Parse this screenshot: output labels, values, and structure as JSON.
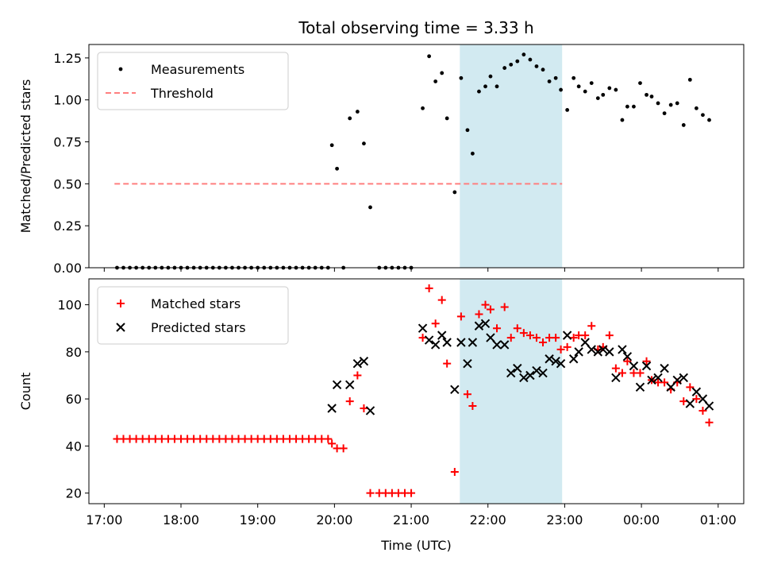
{
  "chart_data": [
    {
      "type": "scatter",
      "title": "Total observing time = 3.33 h",
      "xlabel": "",
      "ylabel": "Matched/Predicted stars",
      "ylim": [
        0,
        1.33
      ],
      "yticks": [
        "0.00",
        "0.25",
        "0.50",
        "0.75",
        "1.00",
        "1.25"
      ],
      "shaded_span": [
        "21:38",
        "22:58"
      ],
      "legend_position": "top-left",
      "threshold": {
        "name": "Threshold",
        "value": 0.5,
        "x_start": "17:08",
        "x_end": "22:58",
        "color": "#ff7f7f"
      },
      "series": [
        {
          "name": "Measurements",
          "color": "#000000",
          "points": [
            [
              "17:10",
              0
            ],
            [
              "17:15",
              0
            ],
            [
              "17:20",
              0
            ],
            [
              "17:25",
              0
            ],
            [
              "17:30",
              0
            ],
            [
              "17:35",
              0
            ],
            [
              "17:40",
              0
            ],
            [
              "17:45",
              0
            ],
            [
              "17:50",
              0
            ],
            [
              "17:55",
              0
            ],
            [
              "18:00",
              0
            ],
            [
              "18:05",
              0
            ],
            [
              "18:10",
              0
            ],
            [
              "18:15",
              0
            ],
            [
              "18:20",
              0
            ],
            [
              "18:25",
              0
            ],
            [
              "18:30",
              0
            ],
            [
              "18:35",
              0
            ],
            [
              "18:40",
              0
            ],
            [
              "18:45",
              0
            ],
            [
              "18:50",
              0
            ],
            [
              "18:55",
              0
            ],
            [
              "19:00",
              0
            ],
            [
              "19:05",
              0
            ],
            [
              "19:10",
              0
            ],
            [
              "19:15",
              0
            ],
            [
              "19:20",
              0
            ],
            [
              "19:25",
              0
            ],
            [
              "19:30",
              0
            ],
            [
              "19:35",
              0
            ],
            [
              "19:40",
              0
            ],
            [
              "19:45",
              0
            ],
            [
              "19:50",
              0
            ],
            [
              "19:55",
              0
            ],
            [
              "19:58",
              0.73
            ],
            [
              "20:02",
              0.59
            ],
            [
              "20:07",
              0
            ],
            [
              "20:12",
              0.89
            ],
            [
              "20:18",
              0.93
            ],
            [
              "20:23",
              0.74
            ],
            [
              "20:28",
              0.36
            ],
            [
              "20:35",
              0
            ],
            [
              "20:40",
              0
            ],
            [
              "20:45",
              0
            ],
            [
              "20:50",
              0
            ],
            [
              "20:55",
              0
            ],
            [
              "21:00",
              0
            ],
            [
              "21:09",
              0.95
            ],
            [
              "21:14",
              1.26
            ],
            [
              "21:19",
              1.11
            ],
            [
              "21:24",
              1.16
            ],
            [
              "21:28",
              0.89
            ],
            [
              "21:34",
              0.45
            ],
            [
              "21:39",
              1.13
            ],
            [
              "21:44",
              0.82
            ],
            [
              "21:48",
              0.68
            ],
            [
              "21:53",
              1.05
            ],
            [
              "21:58",
              1.08
            ],
            [
              "22:02",
              1.14
            ],
            [
              "22:07",
              1.08
            ],
            [
              "22:13",
              1.19
            ],
            [
              "22:18",
              1.21
            ],
            [
              "22:23",
              1.23
            ],
            [
              "22:28",
              1.27
            ],
            [
              "22:33",
              1.24
            ],
            [
              "22:38",
              1.2
            ],
            [
              "22:43",
              1.18
            ],
            [
              "22:48",
              1.11
            ],
            [
              "22:53",
              1.13
            ],
            [
              "22:57",
              1.06
            ],
            [
              "23:02",
              0.94
            ],
            [
              "23:07",
              1.13
            ],
            [
              "23:11",
              1.08
            ],
            [
              "23:16",
              1.05
            ],
            [
              "23:21",
              1.1
            ],
            [
              "23:26",
              1.01
            ],
            [
              "23:30",
              1.03
            ],
            [
              "23:35",
              1.07
            ],
            [
              "23:40",
              1.06
            ],
            [
              "23:45",
              0.88
            ],
            [
              "23:49",
              0.96
            ],
            [
              "23:54",
              0.96
            ],
            [
              "23:59",
              1.1
            ],
            [
              "00:04",
              1.03
            ],
            [
              "00:08",
              1.02
            ],
            [
              "00:13",
              0.98
            ],
            [
              "00:18",
              0.92
            ],
            [
              "00:23",
              0.97
            ],
            [
              "00:28",
              0.98
            ],
            [
              "00:33",
              0.85
            ],
            [
              "00:38",
              1.12
            ],
            [
              "00:43",
              0.95
            ],
            [
              "00:48",
              0.91
            ],
            [
              "00:53",
              0.88
            ]
          ]
        }
      ]
    },
    {
      "type": "scatter",
      "title": "",
      "xlabel": "Time (UTC)",
      "ylabel": "Count",
      "ylim": [
        15.5,
        111
      ],
      "yticks": [
        "20",
        "40",
        "60",
        "80",
        "100"
      ],
      "xticks": [
        "17:00",
        "18:00",
        "19:00",
        "20:00",
        "21:00",
        "22:00",
        "23:00",
        "00:00",
        "01:00"
      ],
      "shaded_span": [
        "21:38",
        "22:58"
      ],
      "legend_position": "top-left",
      "series": [
        {
          "name": "Matched stars",
          "marker": "plus",
          "color": "#ff0000",
          "points": [
            [
              "17:10",
              43
            ],
            [
              "17:15",
              43
            ],
            [
              "17:20",
              43
            ],
            [
              "17:25",
              43
            ],
            [
              "17:30",
              43
            ],
            [
              "17:35",
              43
            ],
            [
              "17:40",
              43
            ],
            [
              "17:45",
              43
            ],
            [
              "17:50",
              43
            ],
            [
              "17:55",
              43
            ],
            [
              "18:00",
              43
            ],
            [
              "18:05",
              43
            ],
            [
              "18:10",
              43
            ],
            [
              "18:15",
              43
            ],
            [
              "18:20",
              43
            ],
            [
              "18:25",
              43
            ],
            [
              "18:30",
              43
            ],
            [
              "18:35",
              43
            ],
            [
              "18:40",
              43
            ],
            [
              "18:45",
              43
            ],
            [
              "18:50",
              43
            ],
            [
              "18:55",
              43
            ],
            [
              "19:00",
              43
            ],
            [
              "19:05",
              43
            ],
            [
              "19:10",
              43
            ],
            [
              "19:15",
              43
            ],
            [
              "19:20",
              43
            ],
            [
              "19:25",
              43
            ],
            [
              "19:30",
              43
            ],
            [
              "19:35",
              43
            ],
            [
              "19:40",
              43
            ],
            [
              "19:45",
              43
            ],
            [
              "19:50",
              43
            ],
            [
              "19:55",
              43
            ],
            [
              "19:58",
              41
            ],
            [
              "20:02",
              39
            ],
            [
              "20:07",
              39
            ],
            [
              "20:12",
              59
            ],
            [
              "20:18",
              70
            ],
            [
              "20:23",
              56
            ],
            [
              "20:28",
              20
            ],
            [
              "20:35",
              20
            ],
            [
              "20:40",
              20
            ],
            [
              "20:45",
              20
            ],
            [
              "20:50",
              20
            ],
            [
              "20:55",
              20
            ],
            [
              "21:00",
              20
            ],
            [
              "21:09",
              86
            ],
            [
              "21:14",
              107
            ],
            [
              "21:19",
              92
            ],
            [
              "21:24",
              102
            ],
            [
              "21:28",
              75
            ],
            [
              "21:34",
              29
            ],
            [
              "21:39",
              95
            ],
            [
              "21:44",
              62
            ],
            [
              "21:48",
              57
            ],
            [
              "21:53",
              96
            ],
            [
              "21:58",
              100
            ],
            [
              "22:02",
              98
            ],
            [
              "22:07",
              90
            ],
            [
              "22:13",
              99
            ],
            [
              "22:18",
              86
            ],
            [
              "22:23",
              90
            ],
            [
              "22:28",
              88
            ],
            [
              "22:33",
              87
            ],
            [
              "22:38",
              86
            ],
            [
              "22:43",
              84
            ],
            [
              "22:48",
              86
            ],
            [
              "22:53",
              86
            ],
            [
              "22:57",
              81
            ],
            [
              "23:02",
              82
            ],
            [
              "23:07",
              86
            ],
            [
              "23:11",
              87
            ],
            [
              "23:16",
              87
            ],
            [
              "23:21",
              91
            ],
            [
              "23:26",
              81
            ],
            [
              "23:30",
              82
            ],
            [
              "23:35",
              87
            ],
            [
              "23:40",
              73
            ],
            [
              "23:45",
              71
            ],
            [
              "23:49",
              76
            ],
            [
              "23:54",
              71
            ],
            [
              "23:59",
              71
            ],
            [
              "00:04",
              76
            ],
            [
              "00:08",
              68
            ],
            [
              "00:13",
              67
            ],
            [
              "00:18",
              67
            ],
            [
              "00:23",
              64
            ],
            [
              "00:28",
              67
            ],
            [
              "00:33",
              59
            ],
            [
              "00:38",
              65
            ],
            [
              "00:43",
              60
            ],
            [
              "00:48",
              55
            ],
            [
              "00:53",
              50
            ]
          ]
        },
        {
          "name": "Predicted stars",
          "marker": "x",
          "color": "#000000",
          "points": [
            [
              "19:58",
              56
            ],
            [
              "20:02",
              66
            ],
            [
              "20:12",
              66
            ],
            [
              "20:18",
              75
            ],
            [
              "20:23",
              76
            ],
            [
              "20:28",
              55
            ],
            [
              "21:09",
              90
            ],
            [
              "21:14",
              85
            ],
            [
              "21:19",
              83
            ],
            [
              "21:24",
              87
            ],
            [
              "21:28",
              84
            ],
            [
              "21:34",
              64
            ],
            [
              "21:39",
              84
            ],
            [
              "21:44",
              75
            ],
            [
              "21:48",
              84
            ],
            [
              "21:53",
              91
            ],
            [
              "21:58",
              92
            ],
            [
              "22:02",
              86
            ],
            [
              "22:07",
              83
            ],
            [
              "22:13",
              83
            ],
            [
              "22:18",
              71
            ],
            [
              "22:23",
              73
            ],
            [
              "22:28",
              69
            ],
            [
              "22:33",
              70
            ],
            [
              "22:38",
              72
            ],
            [
              "22:43",
              71
            ],
            [
              "22:48",
              77
            ],
            [
              "22:53",
              76
            ],
            [
              "22:57",
              75
            ],
            [
              "23:02",
              87
            ],
            [
              "23:07",
              77
            ],
            [
              "23:11",
              80
            ],
            [
              "23:16",
              84
            ],
            [
              "23:21",
              81
            ],
            [
              "23:26",
              80
            ],
            [
              "23:30",
              81
            ],
            [
              "23:35",
              80
            ],
            [
              "23:40",
              69
            ],
            [
              "23:45",
              81
            ],
            [
              "23:49",
              78
            ],
            [
              "23:54",
              74
            ],
            [
              "23:59",
              65
            ],
            [
              "00:04",
              74
            ],
            [
              "00:08",
              68
            ],
            [
              "00:13",
              69
            ],
            [
              "00:18",
              73
            ],
            [
              "00:23",
              65
            ],
            [
              "00:28",
              68
            ],
            [
              "00:33",
              69
            ],
            [
              "00:38",
              58
            ],
            [
              "00:43",
              63
            ],
            [
              "00:48",
              60
            ],
            [
              "00:53",
              57
            ]
          ]
        }
      ]
    }
  ],
  "colors": {
    "shade": "#add8e6",
    "axis": "#000000"
  }
}
